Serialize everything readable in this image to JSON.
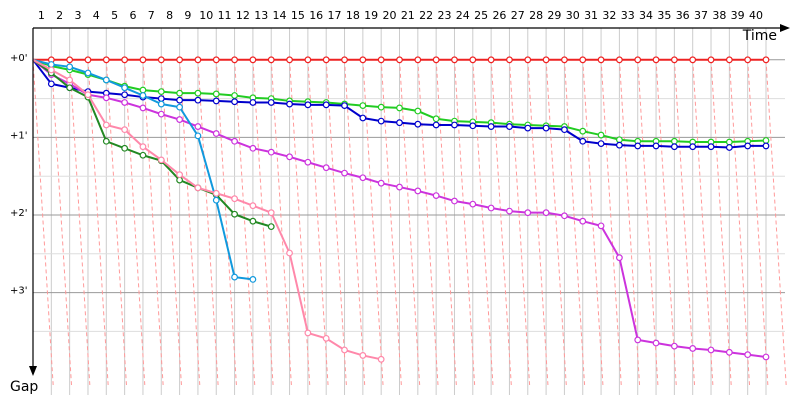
{
  "chart_data": {
    "type": "line",
    "x_label": "Time",
    "y_label": "Gap",
    "x": [
      0,
      1,
      2,
      3,
      4,
      5,
      6,
      7,
      8,
      9,
      10,
      11,
      12,
      13,
      14,
      15,
      16,
      17,
      18,
      19,
      20,
      21,
      22,
      23,
      24,
      25,
      26,
      27,
      28,
      29,
      30,
      31,
      32,
      33,
      34,
      35,
      36,
      37,
      38,
      39,
      40
    ],
    "xlim": [
      0,
      40
    ],
    "xticks": [
      1,
      2,
      3,
      4,
      5,
      6,
      7,
      8,
      9,
      10,
      11,
      12,
      13,
      14,
      15,
      16,
      17,
      18,
      19,
      20,
      21,
      22,
      23,
      24,
      25,
      26,
      27,
      28,
      29,
      30,
      31,
      32,
      33,
      34,
      35,
      36,
      37,
      38,
      39,
      40
    ],
    "ylim": [
      -0.41,
      4.32
    ],
    "y_inverted": true,
    "yticks": [
      {
        "value": 0,
        "label": "+0'"
      },
      {
        "value": 1,
        "label": "+1'"
      },
      {
        "value": 2,
        "label": "+2'"
      },
      {
        "value": 3,
        "label": "+3'"
      }
    ],
    "minor_yticks": [
      0.5,
      1.5,
      2.5,
      3.5
    ],
    "grid": true,
    "series": [
      {
        "color": "#ee2222",
        "values": [
          0,
          0,
          0,
          0,
          0,
          0,
          0,
          0,
          0,
          0,
          0,
          0,
          0,
          0,
          0,
          0,
          0,
          0,
          0,
          0,
          0,
          0,
          0,
          0,
          0,
          0,
          0,
          0,
          0,
          0,
          0,
          0,
          0,
          0,
          0,
          0,
          0,
          0,
          0,
          0,
          0
        ]
      },
      {
        "color": "#22cc22",
        "values": [
          0,
          0.08,
          0.13,
          0.19,
          0.26,
          0.34,
          0.39,
          0.41,
          0.43,
          0.43,
          0.44,
          0.46,
          0.49,
          0.5,
          0.53,
          0.54,
          0.55,
          0.57,
          0.59,
          0.61,
          0.62,
          0.66,
          0.76,
          0.79,
          0.8,
          0.81,
          0.83,
          0.84,
          0.85,
          0.86,
          0.92,
          0.97,
          1.03,
          1.05,
          1.05,
          1.05,
          1.06,
          1.06,
          1.06,
          1.05,
          1.04
        ]
      },
      {
        "color": "#0000cc",
        "values": [
          0,
          0.31,
          0.36,
          0.41,
          0.43,
          0.45,
          0.48,
          0.5,
          0.52,
          0.52,
          0.53,
          0.54,
          0.55,
          0.55,
          0.57,
          0.58,
          0.58,
          0.59,
          0.75,
          0.79,
          0.81,
          0.83,
          0.84,
          0.84,
          0.85,
          0.86,
          0.86,
          0.88,
          0.88,
          0.9,
          1.05,
          1.08,
          1.1,
          1.11,
          1.11,
          1.12,
          1.12,
          1.12,
          1.13,
          1.11,
          1.11
        ]
      },
      {
        "color": "#cc33dd",
        "values": [
          0,
          0.19,
          0.31,
          0.45,
          0.49,
          0.55,
          0.62,
          0.7,
          0.77,
          0.86,
          0.95,
          1.05,
          1.14,
          1.19,
          1.25,
          1.32,
          1.39,
          1.46,
          1.52,
          1.59,
          1.64,
          1.69,
          1.75,
          1.82,
          1.86,
          1.91,
          1.95,
          1.97,
          1.97,
          2.01,
          2.08,
          2.14,
          2.55,
          3.61,
          3.65,
          3.69,
          3.72,
          3.74,
          3.77,
          3.8,
          3.83
        ]
      },
      {
        "color": "#228822",
        "values": [
          0,
          0.17,
          0.36,
          0.48,
          1.05,
          1.14,
          1.23,
          1.3,
          1.55,
          1.65,
          1.74,
          1.99,
          2.08,
          2.15,
          null,
          null,
          null,
          null,
          null,
          null,
          null,
          null,
          null,
          null,
          null,
          null,
          null,
          null,
          null,
          null,
          null,
          null,
          null,
          null,
          null,
          null,
          null,
          null,
          null,
          null,
          null
        ]
      },
      {
        "color": "#1199dd",
        "values": [
          0,
          0.06,
          0.09,
          0.17,
          0.26,
          0.36,
          0.46,
          0.57,
          0.61,
          0.98,
          1.81,
          2.8,
          2.83,
          null,
          null,
          null,
          null,
          null,
          null,
          null,
          null,
          null,
          null,
          null,
          null,
          null,
          null,
          null,
          null,
          null,
          null,
          null,
          null,
          null,
          null,
          null,
          null,
          null,
          null,
          null,
          null
        ]
      },
      {
        "color": "#ff88aa",
        "values": [
          0,
          0.13,
          0.26,
          0.45,
          0.84,
          0.9,
          1.12,
          1.29,
          1.48,
          1.65,
          1.72,
          1.79,
          1.88,
          1.97,
          2.49,
          3.52,
          3.59,
          3.74,
          3.81,
          3.86,
          null,
          null,
          null,
          null,
          null,
          null,
          null,
          null,
          null,
          null,
          null,
          null,
          null,
          null,
          null,
          null,
          null,
          null,
          null,
          null,
          null
        ]
      }
    ]
  }
}
